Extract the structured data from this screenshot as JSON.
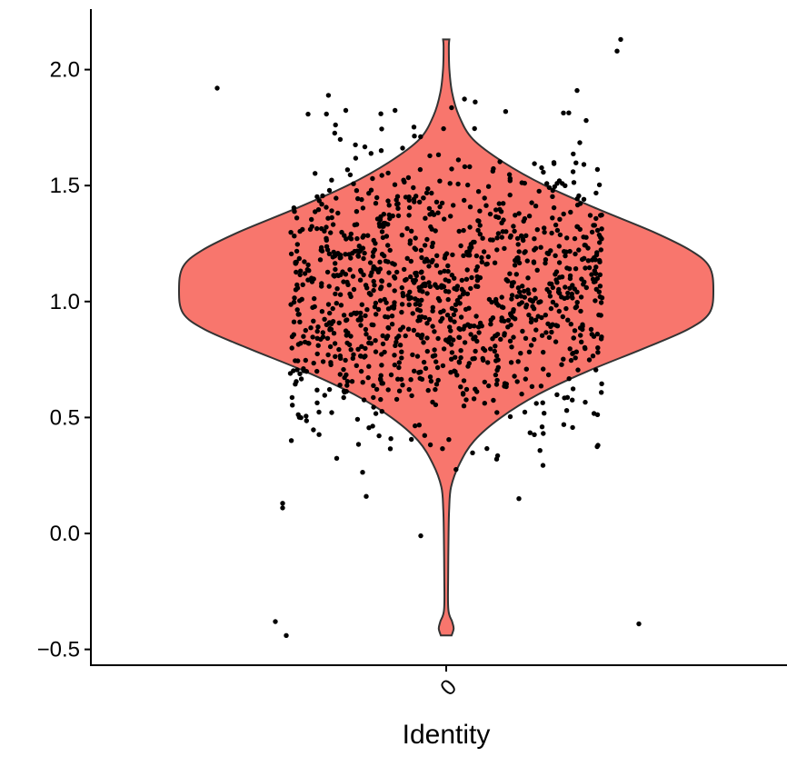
{
  "chart_data": {
    "type": "violin",
    "xlabel": "Identity",
    "ylabel": "",
    "categories": [
      "0"
    ],
    "ylim": [
      -0.55,
      2.27
    ],
    "yticks": [
      -0.5,
      0.0,
      0.5,
      1.0,
      1.5,
      2.0
    ],
    "ytick_labels": [
      "−0.5",
      "0.0",
      "0.5",
      "1.0",
      "1.5",
      "2.0"
    ],
    "grid": false,
    "legend": "none",
    "violin_color": "#F8766D",
    "violin_outline_color": "#333333",
    "point_color": "#000000",
    "violin": {
      "category": "0",
      "range": [
        -0.44,
        2.13
      ],
      "density_profile": [
        [
          -0.44,
          0.02
        ],
        [
          -0.41,
          0.028
        ],
        [
          -0.38,
          0.022
        ],
        [
          -0.33,
          0.008
        ],
        [
          -0.2,
          0.007
        ],
        [
          0.0,
          0.009
        ],
        [
          0.1,
          0.011
        ],
        [
          0.2,
          0.018
        ],
        [
          0.3,
          0.05
        ],
        [
          0.4,
          0.105
        ],
        [
          0.5,
          0.205
        ],
        [
          0.6,
          0.345
        ],
        [
          0.7,
          0.53
        ],
        [
          0.8,
          0.745
        ],
        [
          0.88,
          0.905
        ],
        [
          0.95,
          0.985
        ],
        [
          1.05,
          1.0
        ],
        [
          1.15,
          0.985
        ],
        [
          1.22,
          0.915
        ],
        [
          1.3,
          0.775
        ],
        [
          1.4,
          0.565
        ],
        [
          1.5,
          0.37
        ],
        [
          1.6,
          0.215
        ],
        [
          1.7,
          0.1
        ],
        [
          1.8,
          0.048
        ],
        [
          1.9,
          0.022
        ],
        [
          2.0,
          0.012
        ],
        [
          2.1,
          0.01
        ],
        [
          2.13,
          0.012
        ]
      ]
    },
    "points": {
      "category": "0",
      "count": 1200,
      "mean": 1.05,
      "sd": 0.3,
      "min": -0.44,
      "max": 2.13,
      "jitter_width": 0.65,
      "outliers": [
        {
          "x_jitter": -0.47,
          "y": -0.38
        },
        {
          "x_jitter": -0.44,
          "y": -0.44
        },
        {
          "x_jitter": 0.53,
          "y": -0.39
        },
        {
          "x_jitter": -0.07,
          "y": -0.01
        },
        {
          "x_jitter": 0.47,
          "y": 2.08
        },
        {
          "x_jitter": 0.48,
          "y": 2.13
        },
        {
          "x_jitter": -0.63,
          "y": 1.92
        },
        {
          "x_jitter": 0.36,
          "y": 1.91
        },
        {
          "x_jitter": -0.45,
          "y": 0.13
        },
        {
          "x_jitter": -0.45,
          "y": 0.11
        },
        {
          "x_jitter": -0.22,
          "y": 0.16
        },
        {
          "x_jitter": 0.2,
          "y": 0.15
        }
      ]
    }
  }
}
